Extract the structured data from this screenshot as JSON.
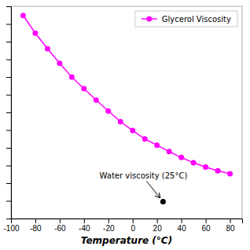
{
  "chart_data": {
    "type": "line",
    "x_label": "Temperature (°C)",
    "x": [
      -90,
      -80,
      -70,
      -60,
      -50,
      -40,
      -30,
      -20,
      -10,
      0,
      10,
      20,
      30,
      40,
      50,
      60,
      70,
      80
    ],
    "series": [
      {
        "name": "Glycerol Viscosity",
        "color": "#FF00FF",
        "marker": "circle",
        "values": [
          30000000.0,
          3000000.0,
          400000.0,
          60000.0,
          10000.0,
          2200,
          500,
          120,
          30,
          9.4,
          3.2,
          1.41,
          0.612,
          0.284,
          0.142,
          0.081,
          0.05,
          0.034
        ]
      },
      {
        "type": "scatter",
        "color": "#000000",
        "marker": "circle",
        "x": [
          25
        ],
        "values": [
          0.0009
        ]
      }
    ],
    "annotations": [
      {
        "text": "Water viscosity (25°C)",
        "x": 25,
        "y": 0.0009
      }
    ],
    "xlim": [
      -100,
      90
    ],
    "xticks": [
      -100,
      -80,
      -60,
      -40,
      -20,
      0,
      20,
      40,
      60,
      80
    ],
    "ylim": [
      0.0001,
      100000000
    ],
    "yticks": [
      0.0001,
      0.001,
      0.01,
      0.1,
      1,
      10,
      100,
      1000,
      10000,
      100000,
      1000000,
      10000000,
      100000000
    ],
    "log": "y",
    "tick_labels": "x",
    "legend": "upper-right",
    "grid": false
  }
}
